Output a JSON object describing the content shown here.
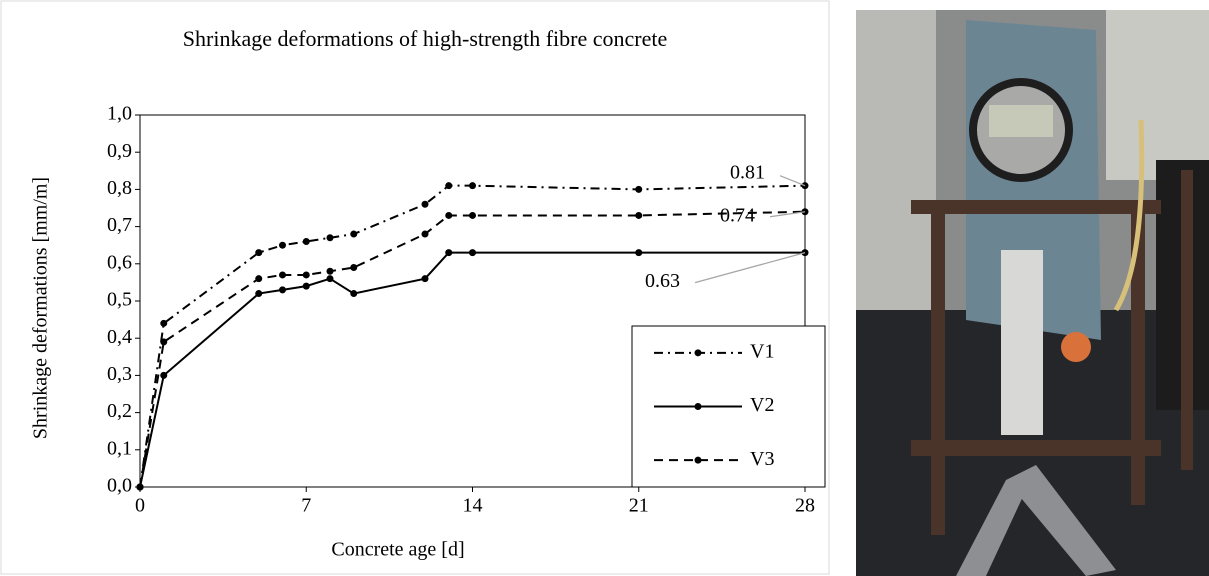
{
  "chart_data": {
    "type": "line",
    "title": "Shrinkage deformations of high-strength fibre concrete",
    "xlabel": "Concrete age [d]",
    "ylabel": "Shrinkage deformations [mm/m]",
    "x": [
      0,
      1,
      5,
      6,
      7,
      8,
      9,
      12,
      13,
      14,
      21,
      28
    ],
    "series": [
      {
        "name": "V1",
        "color": "#000000",
        "line_style": "dash-dot",
        "values": [
          0,
          0.44,
          0.63,
          0.65,
          0.66,
          0.67,
          0.68,
          0.76,
          0.81,
          0.81,
          0.8,
          0.81
        ],
        "value_labels": [
          null,
          null,
          null,
          null,
          null,
          null,
          null,
          null,
          null,
          null,
          null,
          "0.81"
        ]
      },
      {
        "name": "V2",
        "color": "#000000",
        "line_style": "solid",
        "values": [
          0,
          0.3,
          0.52,
          0.53,
          0.54,
          0.56,
          0.52,
          0.56,
          0.63,
          0.63,
          0.63,
          0.63
        ],
        "value_labels": [
          null,
          null,
          null,
          null,
          null,
          null,
          null,
          null,
          null,
          null,
          null,
          "0.63"
        ]
      },
      {
        "name": "V3",
        "color": "#000000",
        "line_style": "dash",
        "values": [
          0,
          0.39,
          0.56,
          0.57,
          0.57,
          0.58,
          0.59,
          0.68,
          0.73,
          0.73,
          0.73,
          0.74
        ],
        "value_labels": [
          null,
          null,
          null,
          null,
          null,
          null,
          null,
          null,
          null,
          null,
          null,
          "0.74"
        ]
      }
    ],
    "xlim": [
      0,
      28
    ],
    "xticks": [
      0,
      7,
      14,
      21,
      28
    ],
    "ylim": [
      0,
      1.0
    ],
    "yticks": [
      {
        "value": 0,
        "label": "0,0"
      },
      {
        "value": 0.1,
        "label": "0,1"
      },
      {
        "value": 0.2,
        "label": "0,2"
      },
      {
        "value": 0.3,
        "label": "0,3"
      },
      {
        "value": 0.4,
        "label": "0,4"
      },
      {
        "value": 0.5,
        "label": "0,5"
      },
      {
        "value": 0.6,
        "label": "0,6"
      },
      {
        "value": 0.7,
        "label": "0,7"
      },
      {
        "value": 0.8,
        "label": "0,8"
      },
      {
        "value": 0.9,
        "label": "0,9"
      },
      {
        "value": 1.0,
        "label": "1,0"
      }
    ],
    "grid": false,
    "legend": "lower right"
  }
}
